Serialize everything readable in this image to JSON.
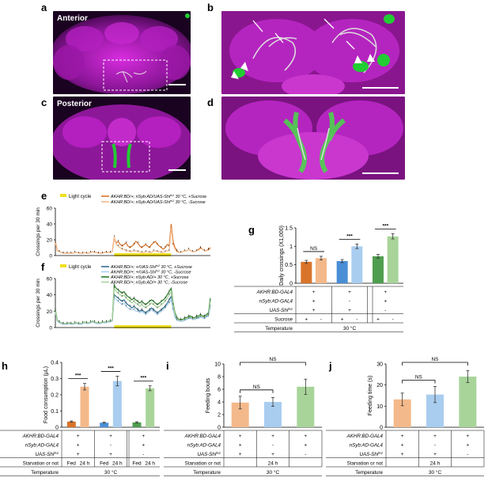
{
  "panels": {
    "a": {
      "letter": "a",
      "label": "Anterior"
    },
    "b": {
      "letter": "b"
    },
    "c": {
      "letter": "c",
      "label": "Posterior"
    },
    "d": {
      "letter": "d"
    },
    "e": {
      "letter": "e"
    },
    "f": {
      "letter": "f"
    },
    "g": {
      "letter": "g"
    },
    "h": {
      "letter": "h"
    },
    "i": {
      "letter": "i"
    },
    "j": {
      "letter": "j"
    }
  },
  "colors": {
    "magenta": "#c019c8",
    "green": "#22cc33",
    "dark_orange": "#d9742a",
    "light_orange": "#f4b98a",
    "blue": "#4a8fd6",
    "light_blue": "#a9cdef",
    "green_bar": "#4f9e4f",
    "light_green": "#a8d49a",
    "yellow": "#f0e020",
    "teal": "#2e6f8e"
  },
  "chart_data": [
    {
      "id": "e",
      "type": "line",
      "ylabel": "Crossings per 30 min",
      "yticks": [
        0,
        20,
        40,
        60
      ],
      "ylim": [
        0,
        60
      ],
      "light_cycle_label": "Light cycle",
      "series": [
        {
          "name_parts": [
            "AKHR:BD/+; nSyb:AD/UAS-Shi",
            "ts1",
            " 30 °C, +Sucrose"
          ],
          "color": "#d9742a",
          "values": [
            18,
            6,
            5,
            4,
            3,
            3,
            3,
            3,
            3,
            3,
            4,
            4,
            3,
            3,
            3,
            4,
            3,
            3,
            4,
            5,
            4,
            4,
            3,
            3,
            3,
            4,
            4,
            4,
            4,
            5,
            22,
            16,
            18,
            14,
            12,
            14,
            16,
            12,
            10,
            12,
            14,
            18,
            16,
            12,
            10,
            12,
            14,
            12,
            10,
            14,
            16,
            18,
            14,
            12,
            10,
            8,
            10,
            14,
            12,
            40,
            18,
            10,
            6,
            4,
            4,
            5,
            6,
            6,
            8,
            6,
            5,
            5,
            6,
            8,
            10,
            8,
            6,
            6,
            8,
            10
          ]
        },
        {
          "name_parts": [
            "AKHR:BD/+; nSyb:AD/UAS-Shi",
            "ts1",
            " 30 °C, -Sucrose"
          ],
          "color": "#f4b98a",
          "values": [
            16,
            6,
            5,
            4,
            3,
            3,
            3,
            3,
            3,
            3,
            4,
            4,
            3,
            3,
            3,
            4,
            3,
            3,
            4,
            5,
            4,
            4,
            3,
            3,
            3,
            4,
            4,
            4,
            4,
            5,
            24,
            14,
            12,
            10,
            8,
            8,
            6,
            6,
            5,
            5,
            6,
            6,
            5,
            5,
            4,
            4,
            5,
            5,
            4,
            4,
            6,
            6,
            5,
            5,
            4,
            4,
            5,
            6,
            6,
            35,
            14,
            8,
            5,
            4,
            4,
            5,
            6,
            6,
            8,
            6,
            5,
            5,
            6,
            7,
            9,
            8,
            6,
            6,
            7,
            8
          ]
        }
      ]
    },
    {
      "id": "f",
      "type": "line",
      "ylabel": "Crossings per 30 min",
      "yticks": [
        0,
        20,
        40,
        60
      ],
      "ylim": [
        0,
        60
      ],
      "light_cycle_label": "Light cycle",
      "series": [
        {
          "name_parts": [
            "AKHR:BD/+; +/UAS-Shi",
            "ts1",
            " 30 °C, +Sucrose"
          ],
          "color": "#2e6f8e",
          "values": [
            20,
            8,
            6,
            5,
            4,
            4,
            4,
            5,
            4,
            4,
            5,
            5,
            4,
            4,
            5,
            6,
            5,
            5,
            6,
            7,
            6,
            5,
            5,
            5,
            6,
            6,
            6,
            7,
            7,
            8,
            40,
            38,
            36,
            34,
            32,
            34,
            30,
            28,
            26,
            24,
            26,
            24,
            22,
            20,
            22,
            20,
            18,
            20,
            22,
            24,
            22,
            20,
            18,
            20,
            22,
            24,
            26,
            30,
            34,
            38,
            24,
            14,
            10,
            8,
            8,
            8,
            10,
            10,
            12,
            12,
            10,
            10,
            12,
            12,
            14,
            12,
            12,
            14,
            16,
            28
          ]
        },
        {
          "name_parts": [
            "AKHR:BD/+; +/UAS-Shi",
            "ts1",
            " 30 °C, -Sucrose"
          ],
          "color": "#a9cdef",
          "values": [
            18,
            8,
            6,
            5,
            4,
            4,
            4,
            5,
            4,
            4,
            5,
            5,
            4,
            4,
            5,
            6,
            5,
            5,
            6,
            7,
            6,
            5,
            5,
            5,
            6,
            6,
            6,
            7,
            7,
            8,
            36,
            34,
            32,
            30,
            28,
            30,
            26,
            24,
            22,
            22,
            22,
            20,
            20,
            18,
            20,
            18,
            16,
            18,
            20,
            22,
            20,
            18,
            16,
            18,
            20,
            22,
            24,
            28,
            30,
            34,
            22,
            12,
            9,
            8,
            8,
            8,
            9,
            10,
            11,
            11,
            10,
            10,
            11,
            11,
            13,
            12,
            11,
            13,
            14,
            24
          ]
        },
        {
          "name_parts": [
            "AKHR:BD/+; nSyb:AD/+",
            "",
            " 30 °C, +Sucrose"
          ],
          "color": "#2a7a2a",
          "values": [
            22,
            9,
            7,
            6,
            5,
            5,
            5,
            6,
            5,
            5,
            6,
            6,
            5,
            5,
            6,
            7,
            6,
            6,
            7,
            8,
            7,
            6,
            6,
            6,
            7,
            7,
            7,
            8,
            8,
            9,
            52,
            48,
            46,
            44,
            42,
            44,
            40,
            38,
            36,
            34,
            36,
            34,
            32,
            30,
            32,
            30,
            28,
            30,
            32,
            34,
            32,
            30,
            28,
            30,
            32,
            34,
            36,
            40,
            44,
            48,
            30,
            18,
            12,
            10,
            10,
            10,
            12,
            12,
            14,
            14,
            12,
            12,
            14,
            14,
            16,
            14,
            14,
            16,
            18,
            36
          ]
        },
        {
          "name_parts": [
            "AKHR:BD/+; nSyb:AD/+",
            "",
            " 30 °C, -Sucrose"
          ],
          "color": "#a8d49a",
          "values": [
            20,
            9,
            7,
            6,
            5,
            5,
            5,
            6,
            5,
            5,
            6,
            6,
            5,
            5,
            6,
            7,
            6,
            6,
            7,
            8,
            7,
            6,
            6,
            6,
            7,
            7,
            7,
            8,
            8,
            9,
            48,
            44,
            42,
            40,
            38,
            40,
            36,
            34,
            32,
            30,
            32,
            30,
            28,
            26,
            28,
            26,
            24,
            26,
            28,
            30,
            28,
            26,
            24,
            26,
            28,
            30,
            32,
            36,
            40,
            44,
            28,
            16,
            11,
            9,
            9,
            9,
            11,
            11,
            13,
            13,
            11,
            11,
            13,
            13,
            15,
            13,
            13,
            15,
            16,
            32
          ]
        }
      ]
    },
    {
      "id": "g",
      "type": "bar",
      "ylabel": "Daily crossings (X1,000)",
      "yticks": [
        "0",
        "0.5",
        "1",
        "1.5"
      ],
      "ylim": [
        0,
        1.5
      ],
      "values": [
        0.58,
        0.68,
        0.6,
        1.0,
        0.73,
        1.27
      ],
      "errors": [
        0.04,
        0.05,
        0.04,
        0.06,
        0.05,
        0.07
      ],
      "colors": [
        "#d9742a",
        "#f4b98a",
        "#4a8fd6",
        "#a9cdef",
        "#4f9e4f",
        "#a8d49a"
      ],
      "significance": [
        "NS",
        "***",
        "***"
      ],
      "table_rows": [
        {
          "label": "AKHR:BD-GAL4",
          "cells": [
            "+",
            "+",
            "+"
          ]
        },
        {
          "label": "nSyb:AD-GAL4",
          "cells": [
            "+",
            "-",
            "+"
          ]
        },
        {
          "label_parts": [
            "UAS-Shi",
            "ts1"
          ],
          "cells": [
            "+",
            "+",
            "-"
          ]
        },
        {
          "label": "Sucrose",
          "cells": [
            "+",
            "-",
            "+",
            "-",
            "+",
            "-"
          ]
        },
        {
          "label": "Temperature",
          "merged": "30 °C"
        }
      ]
    },
    {
      "id": "h",
      "type": "bar",
      "ylabel": "Food consumption (μL)",
      "yticks": [
        "0",
        "0.1",
        "0.2",
        "0.3",
        "0.4"
      ],
      "ylim": [
        0,
        0.4
      ],
      "values": [
        0.035,
        0.25,
        0.028,
        0.285,
        0.03,
        0.24
      ],
      "errors": [
        0.004,
        0.02,
        0.003,
        0.03,
        0.004,
        0.015
      ],
      "colors": [
        "#d9742a",
        "#f4b98a",
        "#4a8fd6",
        "#a9cdef",
        "#4f9e4f",
        "#a8d49a"
      ],
      "significance": [
        "***",
        "***",
        "***"
      ],
      "table_rows": [
        {
          "label": "AKHR:BD-GAL4",
          "cells": [
            "+",
            "+",
            "+"
          ]
        },
        {
          "label": "nSyb:AD-GAL4",
          "cells": [
            "+",
            "-",
            "+"
          ]
        },
        {
          "label_parts": [
            "UAS-Shi",
            "ts1"
          ],
          "cells": [
            "+",
            "+",
            "-"
          ]
        },
        {
          "label": "Starvation or not",
          "cells": [
            "Fed",
            "24 h",
            "Fed",
            "24 h",
            "Fed",
            "24 h"
          ]
        },
        {
          "label": "Temperature",
          "merged": "30 °C"
        }
      ]
    },
    {
      "id": "i",
      "type": "bar",
      "ylabel": "Feeding bouts",
      "yticks": [
        "0",
        "2",
        "4",
        "6",
        "8",
        "10"
      ],
      "ylim": [
        0,
        10
      ],
      "values": [
        3.9,
        4.0,
        6.4
      ],
      "errors": [
        1.0,
        0.7,
        1.2
      ],
      "colors": [
        "#f4b98a",
        "#a9cdef",
        "#a8d49a"
      ],
      "significance": [
        {
          "from": 0,
          "to": 1,
          "label": "NS"
        },
        {
          "from": 0,
          "to": 2,
          "label": "NS"
        }
      ],
      "table_rows": [
        {
          "label": "AKHR:BD-GAL4",
          "cells": [
            "+",
            "+",
            "+"
          ]
        },
        {
          "label": "nSyb:AD-GAL4",
          "cells": [
            "+",
            "-",
            "+"
          ]
        },
        {
          "label_parts": [
            "UAS-Shi",
            "ts1"
          ],
          "cells": [
            "+",
            "+",
            "-"
          ]
        },
        {
          "label": "Starvation or not",
          "merged": "24 h"
        },
        {
          "label": "Temperature",
          "merged": "30 °C"
        }
      ]
    },
    {
      "id": "j",
      "type": "bar",
      "ylabel": "Feeding time (s)",
      "yticks": [
        "0",
        "10",
        "20",
        "30"
      ],
      "ylim": [
        0,
        30
      ],
      "values": [
        13.2,
        15.5,
        24.0
      ],
      "errors": [
        3.0,
        3.8,
        2.8
      ],
      "colors": [
        "#f4b98a",
        "#a9cdef",
        "#a8d49a"
      ],
      "significance": [
        {
          "from": 0,
          "to": 1,
          "label": "NS"
        },
        {
          "from": 0,
          "to": 2,
          "label": "NS"
        }
      ],
      "table_rows": [
        {
          "label": "AKHR:BD-GAL4",
          "cells": [
            "+",
            "+",
            "+"
          ]
        },
        {
          "label": "nSyb:AD-GAL4",
          "cells": [
            "+",
            "-",
            "+"
          ]
        },
        {
          "label_parts": [
            "UAS-Shi",
            "ts1"
          ],
          "cells": [
            "+",
            "+",
            "-"
          ]
        },
        {
          "label": "Starvation or not",
          "merged": "24 h"
        },
        {
          "label": "Temperature",
          "merged": "30 °C"
        }
      ]
    }
  ]
}
